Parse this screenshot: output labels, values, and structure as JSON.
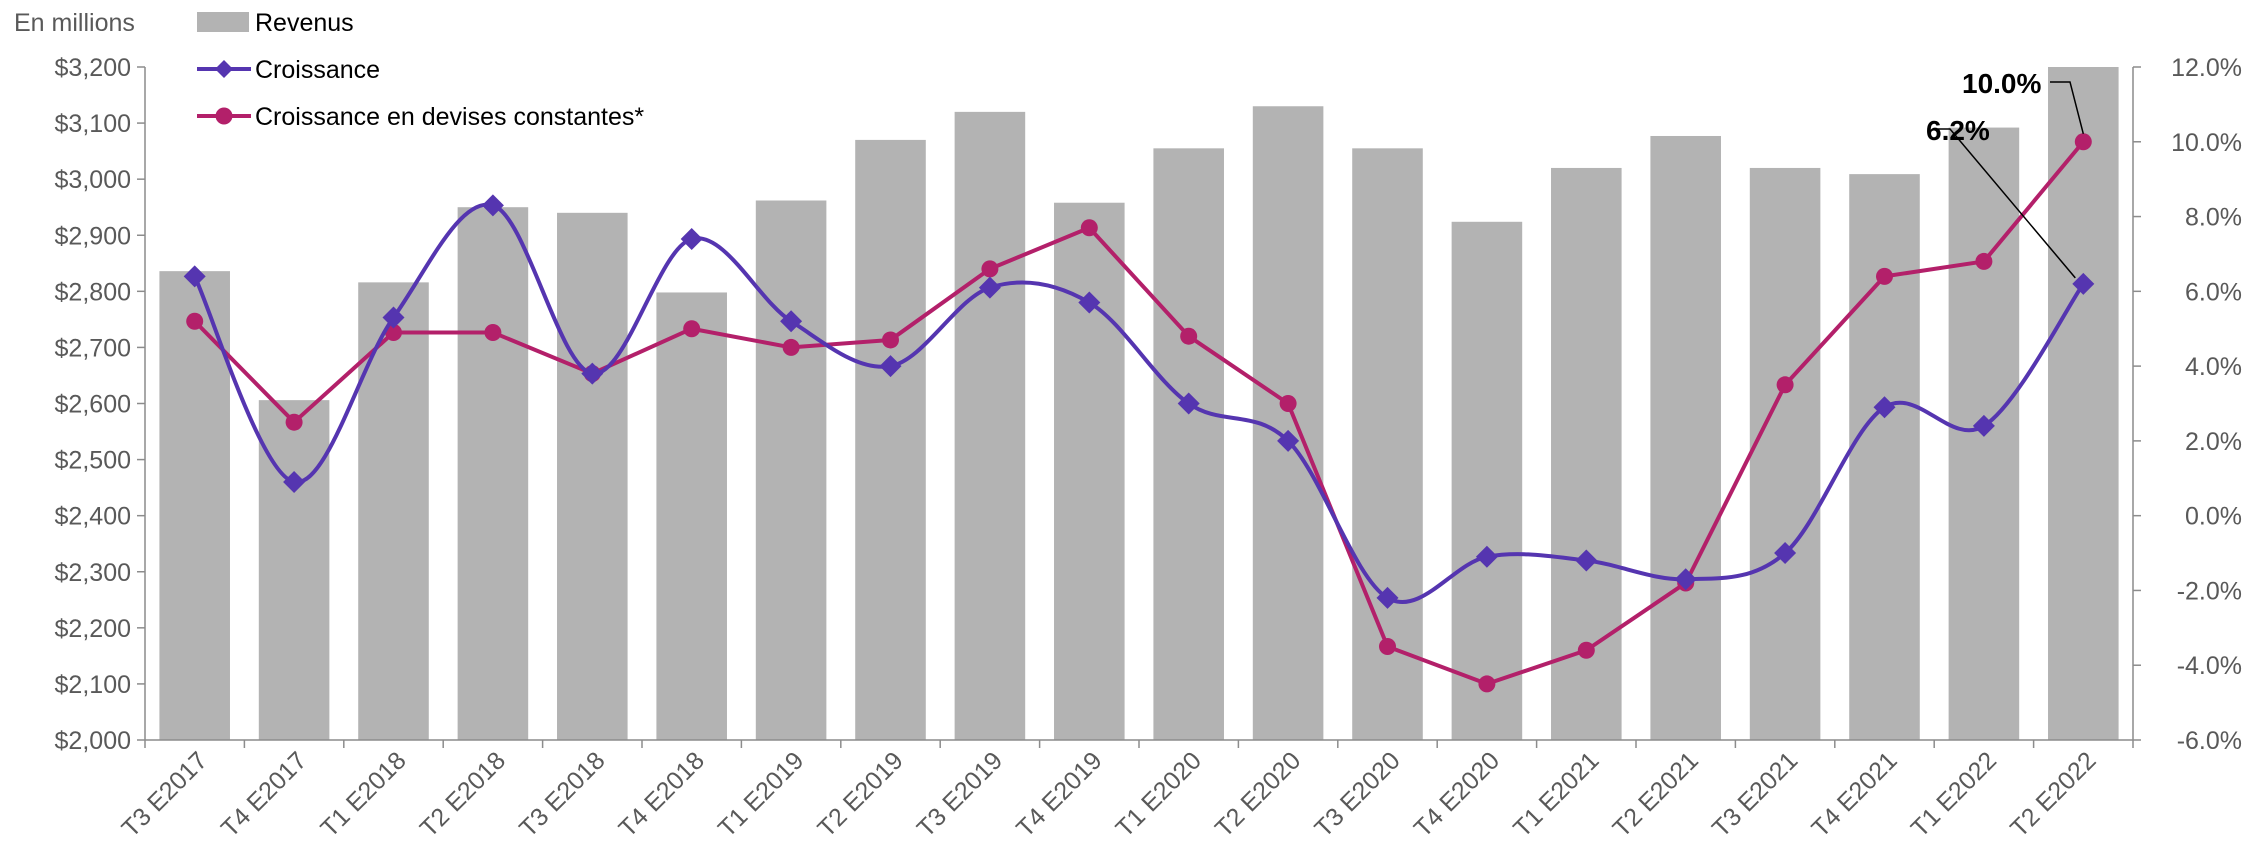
{
  "chart_data": {
    "type": "bar",
    "title": "",
    "y_unit_label": "En millions",
    "categories": [
      "T3 E2017",
      "T4 E2017",
      "T1 E2018",
      "T2 E2018",
      "T3 E2018",
      "T4 E2018",
      "T1 E2019",
      "T2 E2019",
      "T3 E2019",
      "T4 E2019",
      "T1 E2020",
      "T2 E2020",
      "T3 E2020",
      "T4 E2020",
      "T1 E2021",
      "T2 E2021",
      "T3 E2021",
      "T4 E2021",
      "T1 E2022",
      "T2 E2022"
    ],
    "series": [
      {
        "name": "Revenus",
        "type": "bar",
        "axis": "left",
        "color": "#b3b3b3",
        "values": [
          2836,
          2606,
          2816,
          2950,
          2940,
          2798,
          2962,
          3070,
          3120,
          2958,
          3055,
          3130,
          3055,
          2924,
          3020,
          3077,
          3020,
          3009,
          3092,
          3200
        ]
      },
      {
        "name": "Croissance",
        "type": "line",
        "axis": "right",
        "color": "#5535b0",
        "marker": "diamond",
        "smooth": true,
        "values": [
          6.4,
          0.9,
          5.3,
          8.3,
          3.8,
          7.4,
          5.2,
          4.0,
          6.1,
          5.7,
          3.0,
          2.0,
          -2.2,
          -1.1,
          -1.2,
          -1.7,
          -1.0,
          2.9,
          2.4,
          6.2
        ]
      },
      {
        "name": "Croissance en devises constantes*",
        "type": "line",
        "axis": "right",
        "color": "#b3206a",
        "marker": "circle",
        "smooth": false,
        "values": [
          5.2,
          2.5,
          4.9,
          4.9,
          3.8,
          5.0,
          4.5,
          4.7,
          6.6,
          7.7,
          4.8,
          3.0,
          -3.5,
          -4.5,
          -3.6,
          -1.8,
          3.5,
          6.4,
          6.8,
          10.0
        ]
      }
    ],
    "y_left": {
      "min": 2000,
      "max": 3200,
      "step": 100,
      "tick_labels": [
        "$2,000",
        "$2,100",
        "$2,200",
        "$2,300",
        "$2,400",
        "$2,500",
        "$2,600",
        "$2,700",
        "$2,800",
        "$2,900",
        "$3,000",
        "$3,100",
        "$3,200"
      ]
    },
    "y_right": {
      "min": -6,
      "max": 12,
      "step": 2,
      "tick_labels": [
        "-6.0%",
        "-4.0%",
        "-2.0%",
        "0.0%",
        "2.0%",
        "4.0%",
        "6.0%",
        "8.0%",
        "10.0%",
        "12.0%"
      ]
    },
    "grid": false,
    "legend": {
      "placement": "top-left",
      "items": [
        "Revenus",
        "Croissance",
        "Croissance en devises constantes*"
      ]
    },
    "annotations": [
      {
        "text": "10.0%",
        "series": "Croissance en devises constantes*",
        "index": 19
      },
      {
        "text": "6.2%",
        "series": "Croissance",
        "index": 19
      }
    ]
  }
}
